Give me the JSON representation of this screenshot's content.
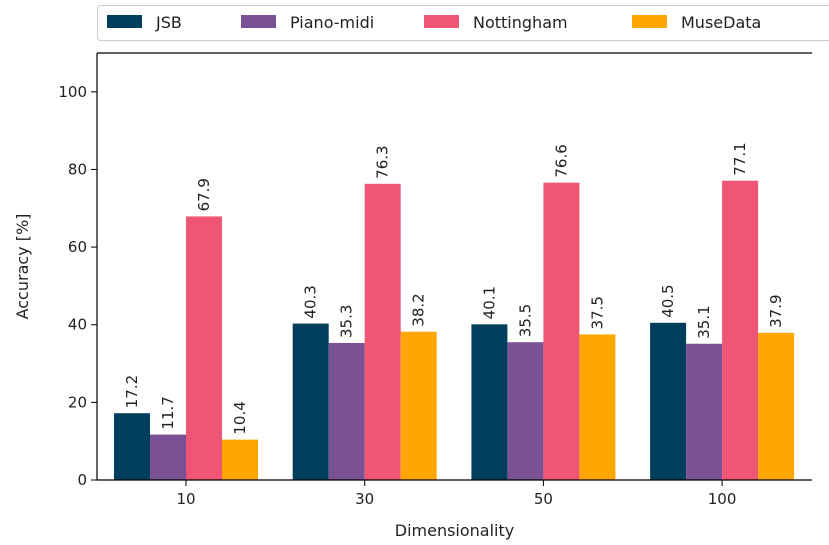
{
  "chart_data": {
    "type": "bar",
    "xlabel": "Dimensionality",
    "ylabel": "Accuracy [%]",
    "categories": [
      "10",
      "30",
      "50",
      "100"
    ],
    "ylim": [
      0,
      110
    ],
    "yticks": [
      0,
      20,
      40,
      60,
      80,
      100
    ],
    "grid": false,
    "legend_position": "top",
    "series": [
      {
        "name": "JSB",
        "color": "#003f5c",
        "values": [
          17.2,
          40.3,
          40.1,
          40.5
        ],
        "labels": [
          "17.2",
          "40.3",
          "40.1",
          "40.5"
        ]
      },
      {
        "name": "Piano-midi",
        "color": "#7a5195",
        "values": [
          11.7,
          35.3,
          35.5,
          35.1
        ],
        "labels": [
          "11.7",
          "35.3",
          "35.5",
          "35.1"
        ]
      },
      {
        "name": "Nottingham",
        "color": "#ef5675",
        "values": [
          67.9,
          76.3,
          76.6,
          77.1
        ],
        "labels": [
          "67.9",
          "76.3",
          "76.6",
          "77.1"
        ]
      },
      {
        "name": "MuseData",
        "color": "#ffa600",
        "values": [
          10.4,
          38.2,
          37.5,
          37.9
        ],
        "labels": [
          "10.4",
          "38.2",
          "37.5",
          "37.9"
        ]
      }
    ]
  }
}
